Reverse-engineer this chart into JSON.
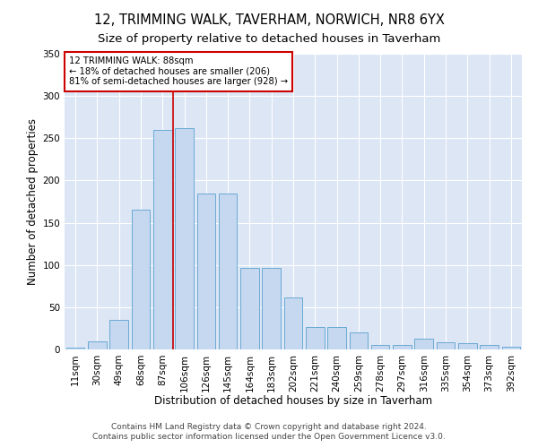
{
  "title": "12, TRIMMING WALK, TAVERHAM, NORWICH, NR8 6YX",
  "subtitle": "Size of property relative to detached houses in Taverham",
  "xlabel": "Distribution of detached houses by size in Taverham",
  "ylabel": "Number of detached properties",
  "categories": [
    "11sqm",
    "30sqm",
    "49sqm",
    "68sqm",
    "87sqm",
    "106sqm",
    "126sqm",
    "145sqm",
    "164sqm",
    "183sqm",
    "202sqm",
    "221sqm",
    "240sqm",
    "259sqm",
    "278sqm",
    "297sqm",
    "316sqm",
    "335sqm",
    "354sqm",
    "373sqm",
    "392sqm"
  ],
  "bar_heights": [
    2,
    10,
    35,
    165,
    260,
    262,
    185,
    185,
    97,
    97,
    62,
    27,
    27,
    20,
    5,
    5,
    13,
    8,
    7,
    5,
    3
  ],
  "bar_color": "#c5d8f0",
  "bar_edge_color": "#6aaad4",
  "vline_color": "#cc0000",
  "annotation_title": "12 TRIMMING WALK: 88sqm",
  "annotation_line1": "← 18% of detached houses are smaller (206)",
  "annotation_line2": "81% of semi-detached houses are larger (928) →",
  "annotation_box_color": "#cc0000",
  "footer1": "Contains HM Land Registry data © Crown copyright and database right 2024.",
  "footer2": "Contains public sector information licensed under the Open Government Licence v3.0.",
  "ylim": [
    0,
    350
  ],
  "yticks": [
    0,
    50,
    100,
    150,
    200,
    250,
    300,
    350
  ],
  "fig_bg_color": "#ffffff",
  "plot_bg_color": "#dce6f5",
  "title_fontsize": 10.5,
  "subtitle_fontsize": 9.5,
  "xlabel_fontsize": 8.5,
  "ylabel_fontsize": 8.5,
  "tick_fontsize": 7.5,
  "footer_fontsize": 6.5
}
